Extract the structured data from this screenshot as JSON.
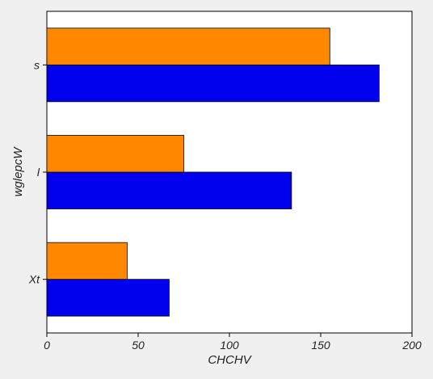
{
  "chart_data": {
    "type": "bar",
    "orientation": "horizontal",
    "categories": [
      "Xt",
      "l",
      "s"
    ],
    "series": [
      {
        "values": [
          67,
          134,
          182
        ],
        "color": "#0000ee"
      },
      {
        "values": [
          44,
          75,
          155
        ],
        "color": "#ff8800"
      }
    ],
    "xlabel": "CHCHV",
    "ylabel": "wglepcW",
    "xlim": [
      0,
      200
    ],
    "xticks": [
      "0",
      "50",
      "100",
      "150",
      "200"
    ],
    "grid": false,
    "legend": "none"
  }
}
